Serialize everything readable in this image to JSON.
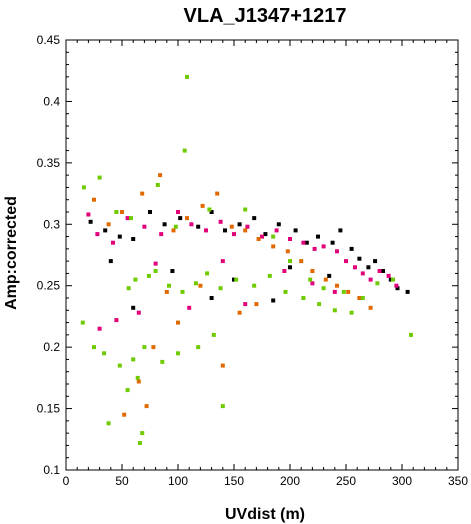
{
  "chart_data": {
    "type": "scatter",
    "title": "VLA_J1347+1217",
    "xlabel": "UVdist (m)",
    "ylabel": "Amp:corrected",
    "xlim": [
      0,
      350
    ],
    "ylim": [
      0.1,
      0.45
    ],
    "x_ticks": [
      0,
      50,
      100,
      150,
      200,
      250,
      300,
      350
    ],
    "y_ticks": [
      0.1,
      0.15,
      0.2,
      0.25,
      0.3,
      0.35,
      0.4,
      0.45
    ],
    "x_tick_labels": [
      "0",
      "50",
      "100",
      "150",
      "200",
      "250",
      "300",
      "350"
    ],
    "y_tick_labels": [
      "0.1",
      "0.15",
      "0.2",
      "0.25",
      "0.3",
      "0.35",
      "0.4",
      "0.45"
    ],
    "grid": false,
    "legend": "none",
    "colors": [
      "#000000",
      "#e0007a",
      "#e06a00",
      "#6ecb00"
    ],
    "series": [
      {
        "color": "#000000",
        "points": [
          [
            22,
            0.302
          ],
          [
            35,
            0.295
          ],
          [
            48,
            0.29
          ],
          [
            60,
            0.288
          ],
          [
            75,
            0.31
          ],
          [
            88,
            0.3
          ],
          [
            102,
            0.305
          ],
          [
            118,
            0.298
          ],
          [
            130,
            0.31
          ],
          [
            142,
            0.295
          ],
          [
            155,
            0.3
          ],
          [
            168,
            0.305
          ],
          [
            178,
            0.292
          ],
          [
            190,
            0.3
          ],
          [
            205,
            0.295
          ],
          [
            215,
            0.285
          ],
          [
            225,
            0.29
          ],
          [
            238,
            0.285
          ],
          [
            245,
            0.295
          ],
          [
            255,
            0.28
          ],
          [
            262,
            0.272
          ],
          [
            270,
            0.265
          ],
          [
            276,
            0.27
          ],
          [
            283,
            0.262
          ],
          [
            290,
            0.255
          ],
          [
            296,
            0.248
          ],
          [
            305,
            0.245
          ],
          [
            40,
            0.27
          ],
          [
            95,
            0.262
          ],
          [
            150,
            0.255
          ],
          [
            200,
            0.265
          ],
          [
            235,
            0.258
          ],
          [
            60,
            0.232
          ],
          [
            130,
            0.24
          ],
          [
            185,
            0.238
          ]
        ]
      },
      {
        "color": "#e0007a",
        "points": [
          [
            20,
            0.308
          ],
          [
            28,
            0.292
          ],
          [
            42,
            0.285
          ],
          [
            55,
            0.305
          ],
          [
            70,
            0.298
          ],
          [
            85,
            0.292
          ],
          [
            100,
            0.31
          ],
          [
            112,
            0.3
          ],
          [
            125,
            0.295
          ],
          [
            138,
            0.302
          ],
          [
            150,
            0.292
          ],
          [
            162,
            0.298
          ],
          [
            175,
            0.29
          ],
          [
            188,
            0.295
          ],
          [
            200,
            0.288
          ],
          [
            212,
            0.285
          ],
          [
            222,
            0.28
          ],
          [
            230,
            0.282
          ],
          [
            242,
            0.278
          ],
          [
            250,
            0.27
          ],
          [
            258,
            0.265
          ],
          [
            265,
            0.26
          ],
          [
            272,
            0.255
          ],
          [
            280,
            0.262
          ],
          [
            288,
            0.258
          ],
          [
            295,
            0.25
          ],
          [
            30,
            0.215
          ],
          [
            45,
            0.222
          ],
          [
            65,
            0.228
          ],
          [
            110,
            0.232
          ],
          [
            160,
            0.235
          ],
          [
            80,
            0.268
          ],
          [
            140,
            0.27
          ],
          [
            195,
            0.262
          ],
          [
            220,
            0.252
          ],
          [
            240,
            0.245
          ]
        ]
      },
      {
        "color": "#e06a00",
        "points": [
          [
            25,
            0.32
          ],
          [
            38,
            0.3
          ],
          [
            50,
            0.31
          ],
          [
            68,
            0.325
          ],
          [
            84,
            0.34
          ],
          [
            96,
            0.295
          ],
          [
            108,
            0.305
          ],
          [
            122,
            0.315
          ],
          [
            135,
            0.325
          ],
          [
            148,
            0.298
          ],
          [
            160,
            0.295
          ],
          [
            172,
            0.288
          ],
          [
            185,
            0.282
          ],
          [
            198,
            0.278
          ],
          [
            210,
            0.27
          ],
          [
            220,
            0.262
          ],
          [
            232,
            0.255
          ],
          [
            242,
            0.25
          ],
          [
            252,
            0.245
          ],
          [
            262,
            0.24
          ],
          [
            272,
            0.232
          ],
          [
            52,
            0.145
          ],
          [
            72,
            0.152
          ],
          [
            65,
            0.172
          ],
          [
            78,
            0.2
          ],
          [
            140,
            0.185
          ],
          [
            100,
            0.22
          ],
          [
            170,
            0.235
          ],
          [
            90,
            0.245
          ],
          [
            120,
            0.25
          ],
          [
            155,
            0.228
          ]
        ]
      },
      {
        "color": "#6ecb00",
        "points": [
          [
            108,
            0.42
          ],
          [
            106,
            0.36
          ],
          [
            16,
            0.33
          ],
          [
            30,
            0.338
          ],
          [
            45,
            0.31
          ],
          [
            58,
            0.305
          ],
          [
            82,
            0.332
          ],
          [
            98,
            0.298
          ],
          [
            128,
            0.312
          ],
          [
            160,
            0.312
          ],
          [
            185,
            0.29
          ],
          [
            200,
            0.27
          ],
          [
            218,
            0.255
          ],
          [
            230,
            0.248
          ],
          [
            248,
            0.245
          ],
          [
            265,
            0.24
          ],
          [
            278,
            0.252
          ],
          [
            292,
            0.255
          ],
          [
            308,
            0.21
          ],
          [
            15,
            0.22
          ],
          [
            25,
            0.2
          ],
          [
            34,
            0.195
          ],
          [
            48,
            0.185
          ],
          [
            60,
            0.19
          ],
          [
            70,
            0.2
          ],
          [
            86,
            0.188
          ],
          [
            100,
            0.195
          ],
          [
            118,
            0.2
          ],
          [
            132,
            0.21
          ],
          [
            64,
            0.175
          ],
          [
            55,
            0.165
          ],
          [
            38,
            0.138
          ],
          [
            68,
            0.13
          ],
          [
            66,
            0.122
          ],
          [
            140,
            0.152
          ],
          [
            56,
            0.248
          ],
          [
            62,
            0.255
          ],
          [
            74,
            0.258
          ],
          [
            80,
            0.262
          ],
          [
            92,
            0.25
          ],
          [
            104,
            0.245
          ],
          [
            116,
            0.252
          ],
          [
            126,
            0.26
          ],
          [
            138,
            0.248
          ],
          [
            152,
            0.255
          ],
          [
            168,
            0.25
          ],
          [
            182,
            0.258
          ],
          [
            196,
            0.245
          ],
          [
            212,
            0.24
          ],
          [
            226,
            0.235
          ],
          [
            240,
            0.23
          ],
          [
            255,
            0.228
          ]
        ]
      }
    ]
  }
}
